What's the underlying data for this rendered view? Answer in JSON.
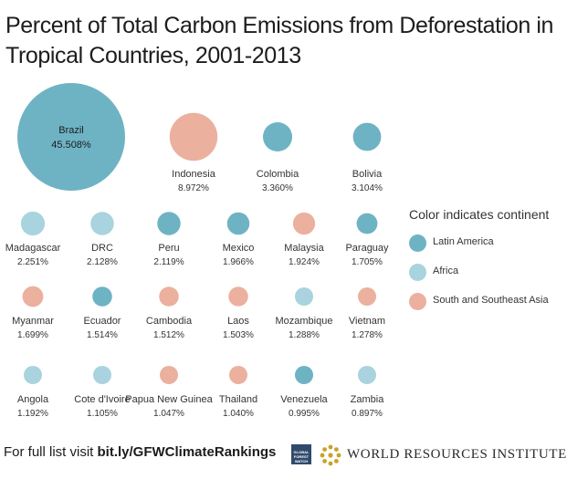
{
  "title_lines": [
    "Percent of Total Carbon Emissions from Deforestation in",
    "Tropical Countries, 2001-2013"
  ],
  "colors": {
    "Latin America": "#6eb3c4",
    "Africa": "#a9d3de",
    "South and Southeast Asia": "#ebb09e"
  },
  "chart_data": {
    "type": "bubble",
    "title": "Percent of Total Carbon Emissions from Deforestation in Tropical Countries, 2001-2013",
    "unit": "%",
    "size_encodes": "percent",
    "color_encodes": "continent",
    "points": [
      {
        "country": "Brazil",
        "label": "45.508%",
        "value": 45.508,
        "continent": "Latin America"
      },
      {
        "country": "Indonesia",
        "label": "8.972%",
        "value": 8.972,
        "continent": "South and Southeast Asia"
      },
      {
        "country": "Colombia",
        "label": "3.360%",
        "value": 3.36,
        "continent": "Latin America"
      },
      {
        "country": "Bolivia",
        "label": "3.104%",
        "value": 3.104,
        "continent": "Latin America"
      },
      {
        "country": "Madagascar",
        "label": "2.251%",
        "value": 2.251,
        "continent": "Africa"
      },
      {
        "country": "DRC",
        "label": "2.128%",
        "value": 2.128,
        "continent": "Africa"
      },
      {
        "country": "Peru",
        "label": "2.119%",
        "value": 2.119,
        "continent": "Latin America"
      },
      {
        "country": "Mexico",
        "label": "1.966%",
        "value": 1.966,
        "continent": "Latin America"
      },
      {
        "country": "Malaysia",
        "label": "1.924%",
        "value": 1.924,
        "continent": "South and Southeast Asia"
      },
      {
        "country": "Paraguay",
        "label": "1.705%",
        "value": 1.705,
        "continent": "Latin America"
      },
      {
        "country": "Myanmar",
        "label": "1.699%",
        "value": 1.699,
        "continent": "South and Southeast Asia"
      },
      {
        "country": "Ecuador",
        "label": "1.514%",
        "value": 1.514,
        "continent": "Latin America"
      },
      {
        "country": "Cambodia",
        "label": "1.512%",
        "value": 1.512,
        "continent": "South and Southeast Asia"
      },
      {
        "country": "Laos",
        "label": "1.503%",
        "value": 1.503,
        "continent": "South and Southeast Asia"
      },
      {
        "country": "Mozambique",
        "label": "1.288%",
        "value": 1.288,
        "continent": "Africa"
      },
      {
        "country": "Vietnam",
        "label": "1.278%",
        "value": 1.278,
        "continent": "South and Southeast Asia"
      },
      {
        "country": "Angola",
        "label": "1.192%",
        "value": 1.192,
        "continent": "Africa"
      },
      {
        "country": "Cote d'Ivoire",
        "label": "1.105%",
        "value": 1.105,
        "continent": "Africa"
      },
      {
        "country": "Papua New Guinea",
        "label": "1.047%",
        "value": 1.047,
        "continent": "South and Southeast Asia"
      },
      {
        "country": "Thailand",
        "label": "1.040%",
        "value": 1.04,
        "continent": "South and Southeast Asia"
      },
      {
        "country": "Venezuela",
        "label": "0.995%",
        "value": 0.995,
        "continent": "Latin America"
      },
      {
        "country": "Zambia",
        "label": "0.897%",
        "value": 0.897,
        "continent": "Africa"
      }
    ]
  },
  "legend": {
    "title": "Color indicates continent",
    "items": [
      {
        "label": "Latin America",
        "color": "#6eb3c4"
      },
      {
        "label": "Africa",
        "color": "#a9d3de"
      },
      {
        "label": "South and Southeast Asia",
        "color": "#ebb09e"
      }
    ]
  },
  "footer": {
    "prefix": "For full list visit ",
    "link": "bit.ly/GFWClimateRankings"
  },
  "logos": {
    "gfw_text": "GLOBAL FOREST WATCH",
    "org_name": "WORLD RESOURCES INSTITUTE"
  }
}
